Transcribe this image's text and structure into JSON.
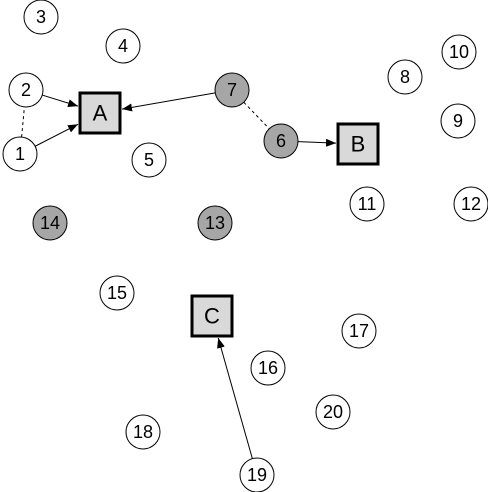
{
  "nodes": [
    {
      "id": "1",
      "label": "1",
      "shape": "circle",
      "fill": "#ffffff"
    },
    {
      "id": "2",
      "label": "2",
      "shape": "circle",
      "fill": "#ffffff"
    },
    {
      "id": "3",
      "label": "3",
      "shape": "circle",
      "fill": "#ffffff"
    },
    {
      "id": "4",
      "label": "4",
      "shape": "circle",
      "fill": "#ffffff"
    },
    {
      "id": "5",
      "label": "5",
      "shape": "circle",
      "fill": "#ffffff"
    },
    {
      "id": "6",
      "label": "6",
      "shape": "circle",
      "fill": "#a6a6a6"
    },
    {
      "id": "7",
      "label": "7",
      "shape": "circle",
      "fill": "#a6a6a6"
    },
    {
      "id": "8",
      "label": "8",
      "shape": "circle",
      "fill": "#ffffff"
    },
    {
      "id": "9",
      "label": "9",
      "shape": "circle",
      "fill": "#ffffff"
    },
    {
      "id": "10",
      "label": "10",
      "shape": "circle",
      "fill": "#ffffff"
    },
    {
      "id": "11",
      "label": "11",
      "shape": "circle",
      "fill": "#ffffff"
    },
    {
      "id": "12",
      "label": "12",
      "shape": "circle",
      "fill": "#ffffff"
    },
    {
      "id": "13",
      "label": "13",
      "shape": "circle",
      "fill": "#a6a6a6"
    },
    {
      "id": "14",
      "label": "14",
      "shape": "circle",
      "fill": "#a6a6a6"
    },
    {
      "id": "15",
      "label": "15",
      "shape": "circle",
      "fill": "#ffffff"
    },
    {
      "id": "16",
      "label": "16",
      "shape": "circle",
      "fill": "#ffffff"
    },
    {
      "id": "17",
      "label": "17",
      "shape": "circle",
      "fill": "#ffffff"
    },
    {
      "id": "18",
      "label": "18",
      "shape": "circle",
      "fill": "#ffffff"
    },
    {
      "id": "19",
      "label": "19",
      "shape": "circle",
      "fill": "#ffffff"
    },
    {
      "id": "20",
      "label": "20",
      "shape": "circle",
      "fill": "#ffffff"
    },
    {
      "id": "A",
      "label": "A",
      "shape": "square",
      "fill": "#d9d9d9"
    },
    {
      "id": "B",
      "label": "B",
      "shape": "square",
      "fill": "#d9d9d9"
    },
    {
      "id": "C",
      "label": "C",
      "shape": "square",
      "fill": "#d9d9d9"
    }
  ],
  "edges": [
    {
      "from": "2",
      "to": "A",
      "style": "arrow"
    },
    {
      "from": "1",
      "to": "A",
      "style": "arrow"
    },
    {
      "from": "7",
      "to": "A",
      "style": "arrow"
    },
    {
      "from": "6",
      "to": "B",
      "style": "arrow"
    },
    {
      "from": "19",
      "to": "C",
      "style": "arrow"
    },
    {
      "from": "1",
      "to": "2",
      "style": "dashed"
    },
    {
      "from": "7",
      "to": "6",
      "style": "dashed"
    }
  ]
}
